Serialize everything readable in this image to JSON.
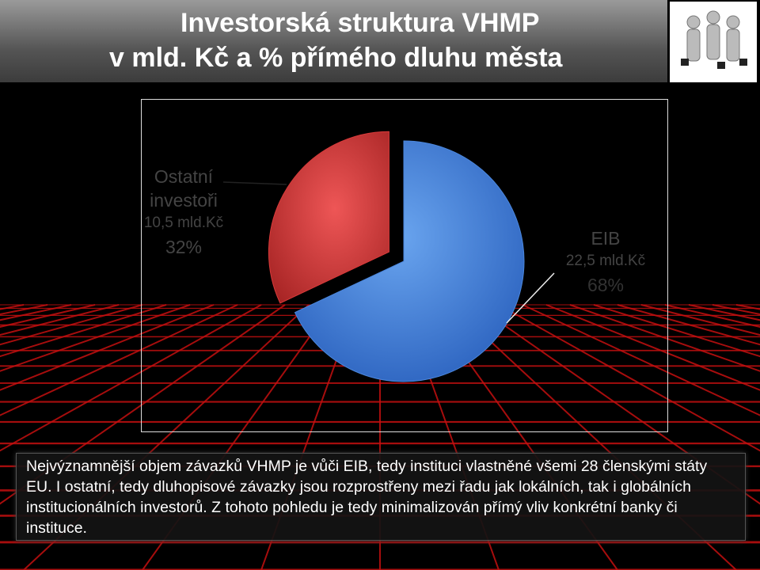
{
  "chart_data": {
    "type": "pie",
    "title": "Investorská struktura VHMP",
    "subtitle": "v mld. Kč a % přímého dluhu města",
    "categories": [
      "Ostatní investoři",
      "EIB"
    ],
    "values": [
      32,
      68
    ],
    "value_labels": [
      "32%",
      "68%"
    ],
    "amounts": [
      10.5,
      22.5
    ],
    "amount_labels": [
      "10,5 mld.Kč",
      "22,5 mld.Kč"
    ],
    "colors": [
      "#d93a3a",
      "#4a86dc"
    ]
  },
  "body_text": "Nejvýznamnější objem závazků VHMP je vůči EIB, tedy instituci vlastněné všemi 28 členskými státy EU. I ostatní, tedy dluhopisové závazky jsou rozprostřeny mezi řadu jak lokálních, tak i globálních institucionálních investorů. Z tohoto pohledu je tedy minimalizován přímý vliv konkrétní banky či instituce."
}
